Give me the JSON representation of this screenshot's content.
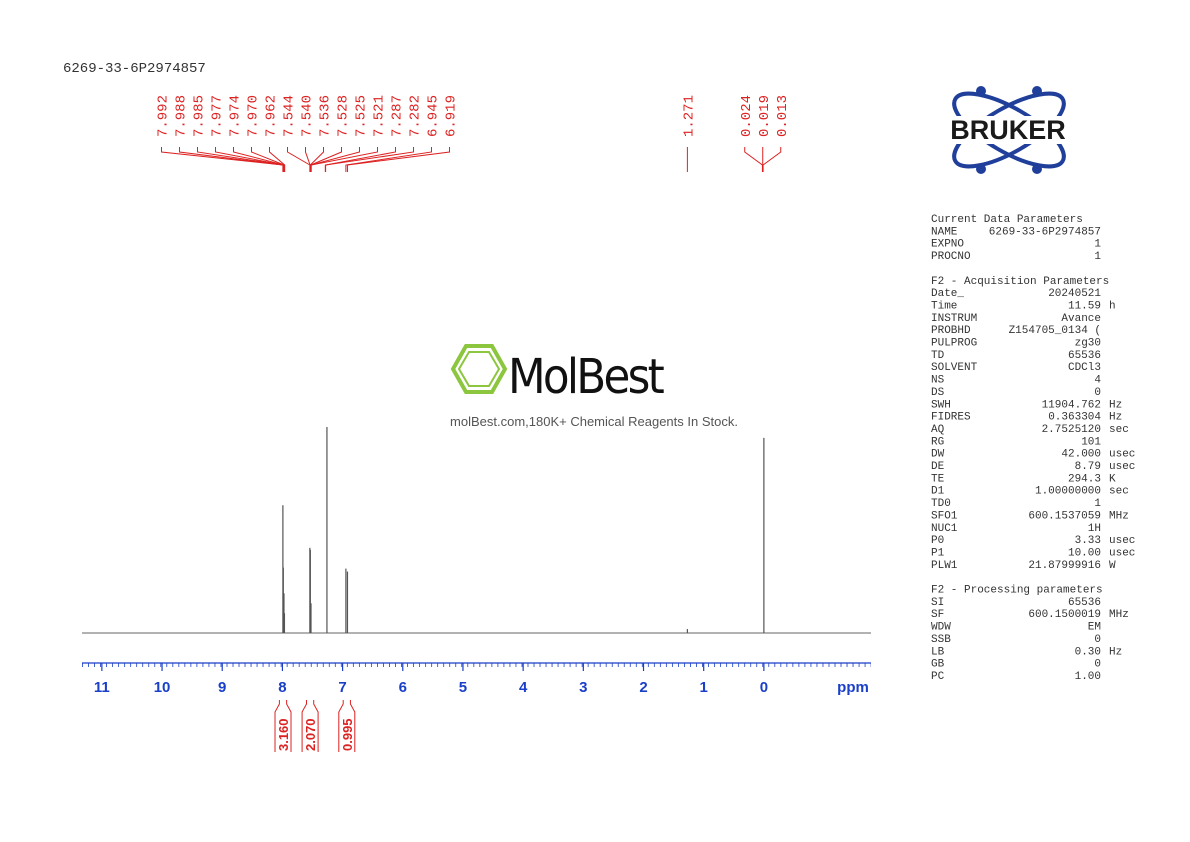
{
  "chart_data": {
    "type": "spectrum",
    "title": "6269-33-6P2974857",
    "xlabel": "ppm",
    "xlim": [
      11.33,
      -1.78
    ],
    "xticks": [
      11,
      10,
      9,
      8,
      7,
      6,
      5,
      4,
      3,
      2,
      1,
      0
    ],
    "ylim": [
      0,
      212
    ],
    "x": [
      7.992,
      7.985,
      7.974,
      7.966,
      7.544,
      7.536,
      7.525,
      7.26,
      6.945,
      6.919,
      1.271,
      0.0
    ],
    "values": [
      129,
      66,
      40,
      20,
      86,
      84,
      30,
      208,
      65,
      62,
      4,
      197
    ],
    "color": "#555555",
    "peak_labels": [
      {
        "value": 7.992,
        "label": "7.992"
      },
      {
        "value": 7.988,
        "label": "7.988"
      },
      {
        "value": 7.985,
        "label": "7.985"
      },
      {
        "value": 7.977,
        "label": "7.977"
      },
      {
        "value": 7.974,
        "label": "7.974"
      },
      {
        "value": 7.97,
        "label": "7.970"
      },
      {
        "value": 7.962,
        "label": "7.962"
      },
      {
        "value": 7.544,
        "label": "7.544"
      },
      {
        "value": 7.54,
        "label": "7.540"
      },
      {
        "value": 7.536,
        "label": "7.536"
      },
      {
        "value": 7.528,
        "label": "7.528"
      },
      {
        "value": 7.525,
        "label": "7.525"
      },
      {
        "value": 7.521,
        "label": "7.521"
      },
      {
        "value": 7.287,
        "label": "7.287"
      },
      {
        "value": 7.282,
        "label": "7.282"
      },
      {
        "value": 6.945,
        "label": "6.945"
      },
      {
        "value": 6.919,
        "label": "6.919"
      },
      {
        "value": 1.271,
        "label": "1.271"
      },
      {
        "value": 0.024,
        "label": "0.024"
      },
      {
        "value": 0.019,
        "label": "0.019"
      },
      {
        "value": 0.013,
        "label": "0.013"
      }
    ],
    "integrals": [
      {
        "from": 8.05,
        "to": 7.93,
        "value": 3.16,
        "label": "3.160"
      },
      {
        "from": 7.6,
        "to": 7.48,
        "value": 2.07,
        "label": "2.070"
      },
      {
        "from": 6.99,
        "to": 6.87,
        "value": 0.995,
        "label": "0.995"
      }
    ]
  },
  "watermark": {
    "brand": "MolBest",
    "tagline": "molBest.com,180K+ Chemical Reagents In Stock."
  },
  "logo": "BRUKER",
  "parameters": [
    {
      "title": "Current Data Parameters",
      "rows": [
        [
          "NAME",
          "6269-33-6P2974857"
        ],
        [
          "EXPNO",
          "1"
        ],
        [
          "PROCNO",
          "1"
        ]
      ]
    },
    {
      "title": "F2 - Acquisition Parameters",
      "rows": [
        [
          "Date_",
          "20240521"
        ],
        [
          "Time",
          "11.59",
          "h"
        ],
        [
          "INSTRUM",
          "Avance"
        ],
        [
          "PROBHD",
          "Z154705_0134 ("
        ],
        [
          "PULPROG",
          "zg30"
        ],
        [
          "TD",
          "65536"
        ],
        [
          "SOLVENT",
          "CDCl3"
        ],
        [
          "NS",
          "4"
        ],
        [
          "DS",
          "0"
        ],
        [
          "SWH",
          "11904.762",
          "Hz"
        ],
        [
          "FIDRES",
          "0.363304",
          "Hz"
        ],
        [
          "AQ",
          "2.7525120",
          "sec"
        ],
        [
          "RG",
          "101"
        ],
        [
          "DW",
          "42.000",
          "usec"
        ],
        [
          "DE",
          "8.79",
          "usec"
        ],
        [
          "TE",
          "294.3",
          "K"
        ],
        [
          "D1",
          "1.00000000",
          "sec"
        ],
        [
          "TD0",
          "1"
        ],
        [
          "SFO1",
          "600.1537059",
          "MHz"
        ],
        [
          "NUC1",
          "1H"
        ],
        [
          "P0",
          "3.33",
          "usec"
        ],
        [
          "P1",
          "10.00",
          "usec"
        ],
        [
          "PLW1",
          "21.87999916",
          "W"
        ]
      ]
    },
    {
      "title": "F2 - Processing parameters",
      "rows": [
        [
          "SI",
          "65536"
        ],
        [
          "SF",
          "600.1500019",
          "MHz"
        ],
        [
          "WDW",
          "EM"
        ],
        [
          "SSB",
          "0"
        ],
        [
          "LB",
          "0.30",
          "Hz"
        ],
        [
          "GB",
          "0"
        ],
        [
          "PC",
          "1.00"
        ]
      ]
    }
  ]
}
